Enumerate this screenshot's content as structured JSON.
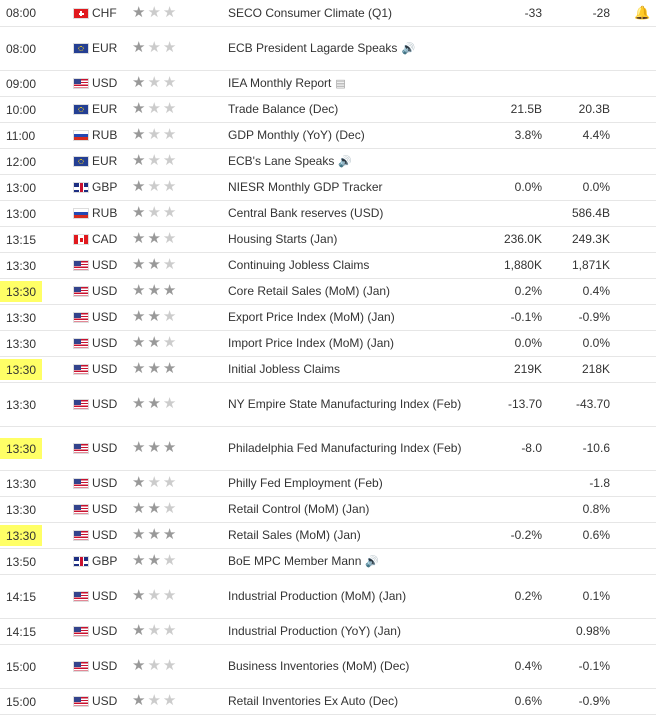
{
  "rows": [
    {
      "time": "08:00",
      "highlight": false,
      "flag": "ch",
      "currency": "CHF",
      "stars": [
        1,
        0,
        0
      ],
      "event": "SECO Consumer Climate (Q1)",
      "actual": "-33",
      "forecast": "-28",
      "icon": "",
      "bell": true
    },
    {
      "time": "08:00",
      "highlight": false,
      "flag": "eu",
      "currency": "EUR",
      "stars": [
        1,
        0,
        0
      ],
      "event": "ECB President Lagarde Speaks",
      "actual": "",
      "forecast": "",
      "icon": "🔊",
      "bell": false
    },
    {
      "time": "09:00",
      "highlight": false,
      "flag": "us",
      "currency": "USD",
      "stars": [
        1,
        0,
        0
      ],
      "event": "IEA Monthly Report",
      "actual": "",
      "forecast": "",
      "icon": "▤",
      "bell": false
    },
    {
      "time": "10:00",
      "highlight": false,
      "flag": "eu",
      "currency": "EUR",
      "stars": [
        1,
        0,
        0
      ],
      "event": "Trade Balance (Dec)",
      "actual": "21.5B",
      "forecast": "20.3B",
      "icon": "",
      "bell": false
    },
    {
      "time": "11:00",
      "highlight": false,
      "flag": "ru",
      "currency": "RUB",
      "stars": [
        1,
        0,
        0
      ],
      "event": "GDP Monthly (YoY) (Dec)",
      "actual": "3.8%",
      "forecast": "4.4%",
      "icon": "",
      "bell": false
    },
    {
      "time": "12:00",
      "highlight": false,
      "flag": "eu",
      "currency": "EUR",
      "stars": [
        1,
        0,
        0
      ],
      "event": "ECB's Lane Speaks",
      "actual": "",
      "forecast": "",
      "icon": "🔊",
      "bell": false
    },
    {
      "time": "13:00",
      "highlight": false,
      "flag": "gb",
      "currency": "GBP",
      "stars": [
        1,
        0,
        0
      ],
      "event": "NIESR Monthly GDP Tracker",
      "actual": "0.0%",
      "forecast": "0.0%",
      "icon": "",
      "bell": false
    },
    {
      "time": "13:00",
      "highlight": false,
      "flag": "ru",
      "currency": "RUB",
      "stars": [
        1,
        0,
        0
      ],
      "event": "Central Bank reserves (USD)",
      "actual": "",
      "forecast": "586.4B",
      "icon": "",
      "bell": false
    },
    {
      "time": "13:15",
      "highlight": false,
      "flag": "ca",
      "currency": "CAD",
      "stars": [
        1,
        1,
        0
      ],
      "event": "Housing Starts (Jan)",
      "actual": "236.0K",
      "forecast": "249.3K",
      "icon": "",
      "bell": false
    },
    {
      "time": "13:30",
      "highlight": false,
      "flag": "us",
      "currency": "USD",
      "stars": [
        1,
        1,
        0
      ],
      "event": "Continuing Jobless Claims",
      "actual": "1,880K",
      "forecast": "1,871K",
      "icon": "",
      "bell": false
    },
    {
      "time": "13:30",
      "highlight": true,
      "flag": "us",
      "currency": "USD",
      "stars": [
        1,
        1,
        1
      ],
      "event": "Core Retail Sales (MoM) (Jan)",
      "actual": "0.2%",
      "forecast": "0.4%",
      "icon": "",
      "bell": false
    },
    {
      "time": "13:30",
      "highlight": false,
      "flag": "us",
      "currency": "USD",
      "stars": [
        1,
        1,
        0
      ],
      "event": "Export Price Index (MoM) (Jan)",
      "actual": "-0.1%",
      "forecast": "-0.9%",
      "icon": "",
      "bell": false
    },
    {
      "time": "13:30",
      "highlight": false,
      "flag": "us",
      "currency": "USD",
      "stars": [
        1,
        1,
        0
      ],
      "event": "Import Price Index (MoM) (Jan)",
      "actual": "0.0%",
      "forecast": "0.0%",
      "icon": "",
      "bell": false
    },
    {
      "time": "13:30",
      "highlight": true,
      "flag": "us",
      "currency": "USD",
      "stars": [
        1,
        1,
        1
      ],
      "event": "Initial Jobless Claims",
      "actual": "219K",
      "forecast": "218K",
      "icon": "",
      "bell": false
    },
    {
      "time": "13:30",
      "highlight": false,
      "flag": "us",
      "currency": "USD",
      "stars": [
        1,
        1,
        0
      ],
      "event": "NY Empire State Manufacturing Index (Feb)",
      "actual": "-13.70",
      "forecast": "-43.70",
      "icon": "",
      "bell": false
    },
    {
      "time": "13:30",
      "highlight": true,
      "flag": "us",
      "currency": "USD",
      "stars": [
        1,
        1,
        1
      ],
      "event": "Philadelphia Fed Manufacturing Index (Feb)",
      "actual": "-8.0",
      "forecast": "-10.6",
      "icon": "",
      "bell": false
    },
    {
      "time": "13:30",
      "highlight": false,
      "flag": "us",
      "currency": "USD",
      "stars": [
        1,
        0,
        0
      ],
      "event": "Philly Fed Employment (Feb)",
      "actual": "",
      "forecast": "-1.8",
      "icon": "",
      "bell": false
    },
    {
      "time": "13:30",
      "highlight": false,
      "flag": "us",
      "currency": "USD",
      "stars": [
        1,
        1,
        0
      ],
      "event": "Retail Control (MoM) (Jan)",
      "actual": "",
      "forecast": "0.8%",
      "icon": "",
      "bell": false
    },
    {
      "time": "13:30",
      "highlight": true,
      "flag": "us",
      "currency": "USD",
      "stars": [
        1,
        1,
        1
      ],
      "event": "Retail Sales (MoM) (Jan)",
      "actual": "-0.2%",
      "forecast": "0.6%",
      "icon": "",
      "bell": false
    },
    {
      "time": "13:50",
      "highlight": false,
      "flag": "gb",
      "currency": "GBP",
      "stars": [
        1,
        1,
        0
      ],
      "event": "BoE MPC Member Mann",
      "actual": "",
      "forecast": "",
      "icon": "🔊",
      "bell": false
    },
    {
      "time": "14:15",
      "highlight": false,
      "flag": "us",
      "currency": "USD",
      "stars": [
        1,
        0,
        0
      ],
      "event": "Industrial Production (MoM) (Jan)",
      "actual": "0.2%",
      "forecast": "0.1%",
      "icon": "",
      "bell": false
    },
    {
      "time": "14:15",
      "highlight": false,
      "flag": "us",
      "currency": "USD",
      "stars": [
        1,
        0,
        0
      ],
      "event": "Industrial Production (YoY) (Jan)",
      "actual": "",
      "forecast": "0.98%",
      "icon": "",
      "bell": false
    },
    {
      "time": "15:00",
      "highlight": false,
      "flag": "us",
      "currency": "USD",
      "stars": [
        1,
        0,
        0
      ],
      "event": "Business Inventories (MoM) (Dec)",
      "actual": "0.4%",
      "forecast": "-0.1%",
      "icon": "",
      "bell": false
    },
    {
      "time": "15:00",
      "highlight": false,
      "flag": "us",
      "currency": "USD",
      "stars": [
        1,
        0,
        0
      ],
      "event": "Retail Inventories Ex Auto (Dec)",
      "actual": "0.6%",
      "forecast": "-0.9%",
      "icon": "",
      "bell": false
    }
  ],
  "bell_icon": "🔔"
}
